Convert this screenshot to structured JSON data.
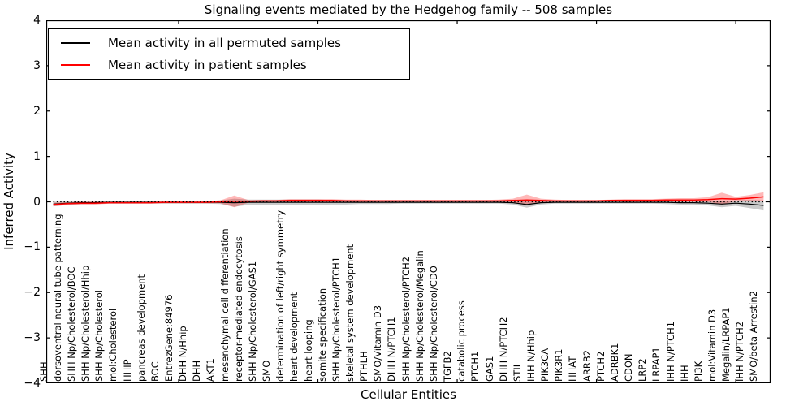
{
  "legend": {
    "items": [
      {
        "label": "Mean activity in all permuted samples",
        "color": "#000000"
      },
      {
        "label": "Mean activity in patient samples",
        "color": "#ff0000"
      }
    ]
  },
  "chart_data": {
    "type": "line",
    "title": "Signaling events mediated by the Hedgehog family -- 508 samples",
    "xlabel": "Cellular Entities",
    "ylabel": "Inferred Activity",
    "ylim": [
      -4,
      4
    ],
    "y_ticks": [
      "4",
      "3",
      "2",
      "1",
      "0",
      "−1",
      "−2",
      "−3",
      "−4"
    ],
    "x_ticks": [
      10,
      20,
      30,
      40,
      50
    ],
    "grid": false,
    "legend_position": "upper left",
    "zero_line": 0,
    "categories": [
      "SHH",
      "dorsoventral neural tube patterning",
      "SHH Np/Cholesterol/BOC",
      "SHH Np/Cholesterol/Hhip",
      "SHH Np/Cholesterol",
      "mol:Cholesterol",
      "HHIP",
      "pancreas development",
      "BOC",
      "EntrezGene:84976",
      "DHH N/Hhip",
      "DHH",
      "AKT1",
      "mesenchymal cell differentiation",
      "receptor-mediated endocytosis",
      "SHH Np/Cholesterol/GAS1",
      "SMO",
      "determination of left/right symmetry",
      "heart development",
      "heart looping",
      "somite specification",
      "SHH Np/Cholesterol/PTCH1",
      "skeletal system development",
      "PTHLH",
      "SMO/Vitamin D3",
      "DHH N/PTCH1",
      "SHH Np/Cholesterol/PTCH2",
      "SHH Np/Cholesterol/Megalin",
      "SHH Np/Cholesterol/CDO",
      "TGFB2",
      "catabolic process",
      "PTCH1",
      "GAS1",
      "DHH N/PTCH2",
      "STIL",
      "IHH N/Hhip",
      "PIK3CA",
      "PIK3R1",
      "HHAT",
      "ARRB2",
      "PTCH2",
      "ADRBK1",
      "CDON",
      "LRP2",
      "LRPAP1",
      "IHH N/PTCH1",
      "IHH",
      "PI3K",
      "mol:Vitamin D3",
      "Megalin/LRPAP1",
      "IHH N/PTCH2",
      "SMO/beta Arrestin2"
    ],
    "series": [
      {
        "name": "Mean activity in all permuted samples",
        "color": "#000000",
        "band_color": "rgba(80,80,80,0.30)",
        "values": [
          -0.05,
          -0.03,
          -0.02,
          -0.02,
          -0.01,
          -0.01,
          -0.01,
          -0.01,
          -0.01,
          -0.01,
          -0.01,
          -0.01,
          -0.01,
          -0.02,
          -0.01,
          -0.01,
          -0.01,
          -0.01,
          -0.01,
          -0.01,
          -0.01,
          -0.01,
          -0.01,
          -0.01,
          -0.01,
          -0.01,
          -0.01,
          -0.01,
          -0.01,
          -0.01,
          -0.01,
          -0.01,
          -0.01,
          -0.02,
          -0.06,
          -0.02,
          -0.01,
          -0.01,
          -0.01,
          -0.01,
          -0.01,
          -0.01,
          -0.01,
          -0.01,
          -0.01,
          -0.02,
          -0.02,
          -0.03,
          -0.05,
          -0.03,
          -0.05,
          -0.08
        ],
        "band_halfwidth": [
          0.05,
          0.04,
          0.03,
          0.03,
          0.03,
          0.03,
          0.03,
          0.03,
          0.03,
          0.03,
          0.03,
          0.03,
          0.04,
          0.09,
          0.06,
          0.06,
          0.06,
          0.06,
          0.06,
          0.06,
          0.05,
          0.05,
          0.04,
          0.04,
          0.04,
          0.03,
          0.03,
          0.03,
          0.03,
          0.03,
          0.03,
          0.03,
          0.03,
          0.04,
          0.07,
          0.04,
          0.03,
          0.03,
          0.03,
          0.03,
          0.03,
          0.03,
          0.03,
          0.03,
          0.04,
          0.04,
          0.04,
          0.05,
          0.07,
          0.06,
          0.09,
          0.11
        ]
      },
      {
        "name": "Mean activity in patient samples",
        "color": "#ff0000",
        "band_color": "rgba(255,0,0,0.28)",
        "values": [
          -0.06,
          -0.04,
          -0.03,
          -0.03,
          -0.02,
          -0.02,
          -0.02,
          -0.02,
          -0.01,
          -0.01,
          -0.01,
          -0.01,
          0.0,
          0.01,
          0.01,
          0.02,
          0.02,
          0.03,
          0.03,
          0.03,
          0.03,
          0.02,
          0.02,
          0.02,
          0.02,
          0.02,
          0.02,
          0.02,
          0.02,
          0.02,
          0.02,
          0.02,
          0.02,
          0.03,
          0.04,
          0.03,
          0.02,
          0.02,
          0.02,
          0.02,
          0.03,
          0.03,
          0.03,
          0.03,
          0.04,
          0.04,
          0.04,
          0.05,
          0.07,
          0.06,
          0.08,
          0.11
        ],
        "band_halfwidth": [
          0.04,
          0.03,
          0.03,
          0.03,
          0.02,
          0.02,
          0.02,
          0.02,
          0.02,
          0.02,
          0.02,
          0.02,
          0.03,
          0.13,
          0.03,
          0.02,
          0.02,
          0.03,
          0.03,
          0.03,
          0.03,
          0.03,
          0.03,
          0.02,
          0.02,
          0.02,
          0.02,
          0.02,
          0.02,
          0.02,
          0.02,
          0.02,
          0.03,
          0.04,
          0.12,
          0.04,
          0.03,
          0.02,
          0.02,
          0.02,
          0.02,
          0.03,
          0.03,
          0.03,
          0.03,
          0.04,
          0.04,
          0.05,
          0.13,
          0.05,
          0.07,
          0.1
        ]
      }
    ]
  }
}
